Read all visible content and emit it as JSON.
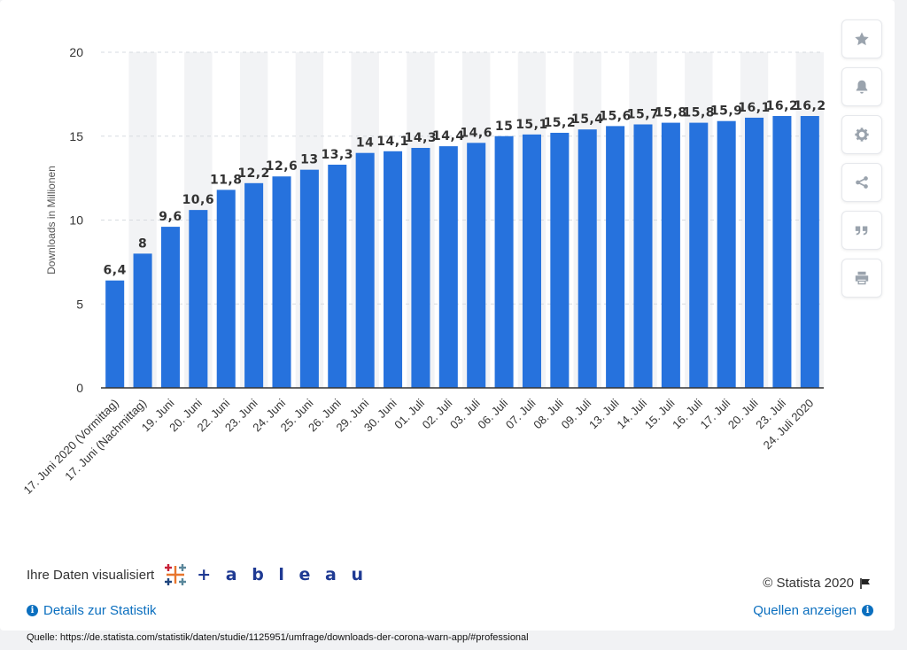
{
  "chart_data": {
    "type": "bar",
    "ylabel": "Downloads in Millionen",
    "xlabel": "",
    "ylim": [
      0,
      20
    ],
    "yticks": [
      0,
      5,
      10,
      15,
      20
    ],
    "grid": true,
    "bar_color": "#2672dd",
    "categories": [
      "17. Juni 2020 (Vormittag)",
      "17. Juni (Nachmittag)",
      "19. Juni",
      "20. Juni",
      "22. Juni",
      "23. Juni",
      "24. Juni",
      "25. Juni",
      "26. Juni",
      "29. Juni",
      "30. Juni",
      "01. Juli",
      "02. Juli",
      "03. Juli",
      "06. Juli",
      "07. Juli",
      "08. Juli",
      "09. Juli",
      "13. Juli",
      "14. Juli",
      "15. Juli",
      "16. Juli",
      "17. Juli",
      "20. Juli",
      "23. Juli",
      "24. Juli 2020"
    ],
    "values": [
      6.4,
      8,
      9.6,
      10.6,
      11.8,
      12.2,
      12.6,
      13,
      13.3,
      14,
      14.1,
      14.3,
      14.4,
      14.6,
      15,
      15.1,
      15.2,
      15.4,
      15.6,
      15.7,
      15.8,
      15.8,
      15.9,
      16.1,
      16.2,
      16.2
    ],
    "value_labels": [
      "6,4",
      "8",
      "9,6",
      "10,6",
      "11,8",
      "12,2",
      "12,6",
      "13",
      "13,3",
      "14",
      "14,1",
      "14,3",
      "14,4",
      "14,6",
      "15",
      "15,1",
      "15,2",
      "15,4",
      "15,6",
      "15,7",
      "15,8",
      "15,8",
      "15,9",
      "16,1",
      "16,2",
      "16,2"
    ]
  },
  "sidebar": {
    "buttons": [
      {
        "icon": "star-icon",
        "name": "favorite-button"
      },
      {
        "icon": "bell-icon",
        "name": "notification-button"
      },
      {
        "icon": "gear-icon",
        "name": "settings-button"
      },
      {
        "icon": "share-icon",
        "name": "share-button"
      },
      {
        "icon": "quote-icon",
        "name": "cite-button"
      },
      {
        "icon": "print-icon",
        "name": "print-button"
      }
    ]
  },
  "footer": {
    "viz_label": "Ihre Daten visualisiert",
    "tableau_word": "+ a b l e a u",
    "copyright": "© Statista 2020",
    "details_link": "Details zur Statistik",
    "sources_link": "Quellen anzeigen",
    "source": "Quelle: https://de.statista.com/statistik/daten/studie/1125951/umfrage/downloads-der-corona-warn-app/#professional"
  }
}
